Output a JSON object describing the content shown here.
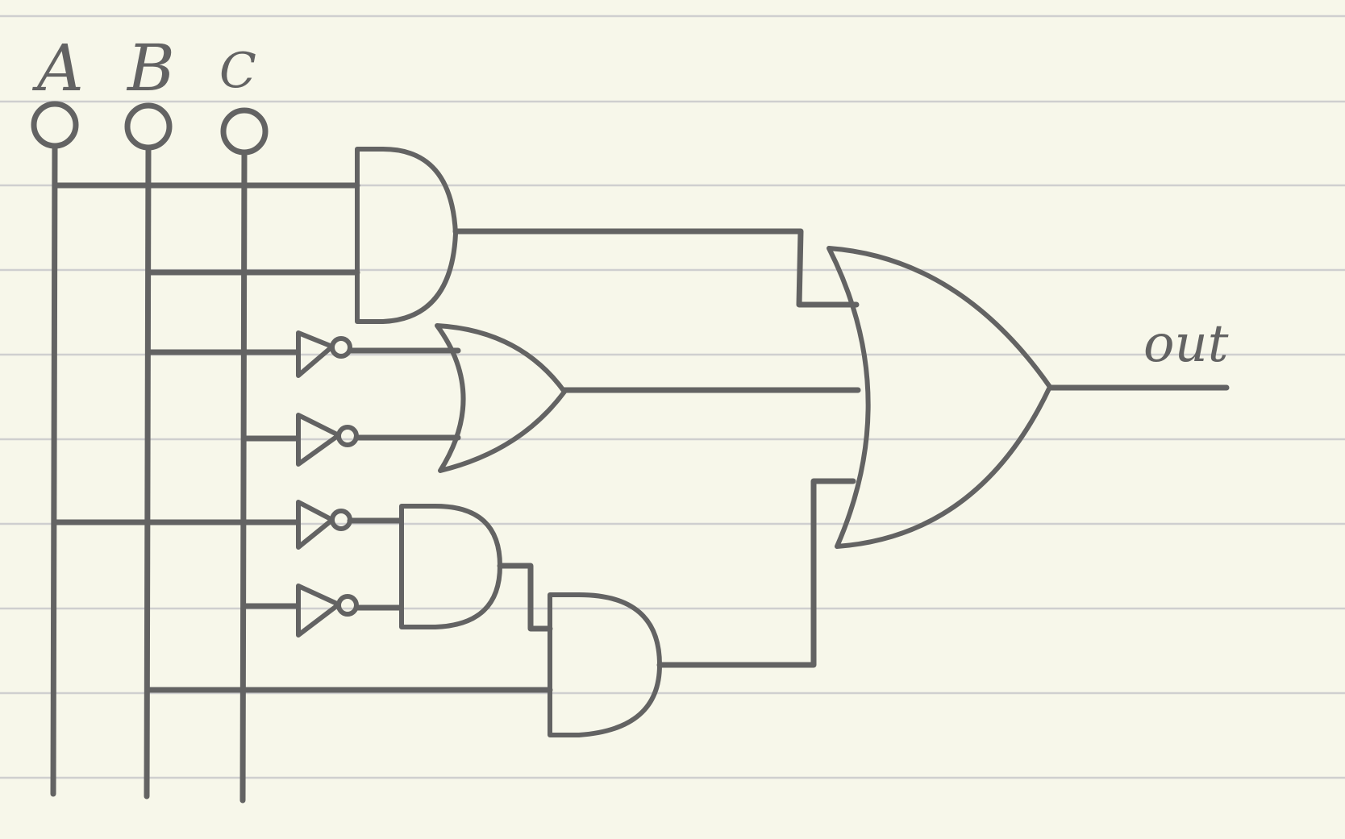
{
  "diagram": {
    "inputs": [
      {
        "id": "A",
        "label": "A"
      },
      {
        "id": "B",
        "label": "B"
      },
      {
        "id": "C",
        "label": "C"
      }
    ],
    "output": {
      "label": "out"
    },
    "gates": [
      {
        "id": "and-top",
        "type": "AND",
        "inputs": [
          "A",
          "B"
        ]
      },
      {
        "id": "not-b",
        "type": "NOT",
        "inputs": [
          "B"
        ]
      },
      {
        "id": "not-c-upper",
        "type": "NOT",
        "inputs": [
          "C"
        ]
      },
      {
        "id": "or-middle",
        "type": "OR",
        "inputs": [
          "not-b",
          "not-c-upper"
        ]
      },
      {
        "id": "not-a",
        "type": "NOT",
        "inputs": [
          "A"
        ]
      },
      {
        "id": "not-c-lower",
        "type": "NOT",
        "inputs": [
          "C"
        ]
      },
      {
        "id": "and-lower-1",
        "type": "AND",
        "inputs": [
          "not-a",
          "not-c-lower"
        ]
      },
      {
        "id": "and-lower-2",
        "type": "AND",
        "inputs": [
          "and-lower-1",
          "B"
        ]
      },
      {
        "id": "or-final",
        "type": "OR",
        "inputs": [
          "and-top",
          "or-middle",
          "and-lower-2"
        ]
      }
    ],
    "colors": {
      "paper": "#f7f7ea",
      "ruling": "#cfcfcf",
      "ink": "#636363"
    }
  }
}
